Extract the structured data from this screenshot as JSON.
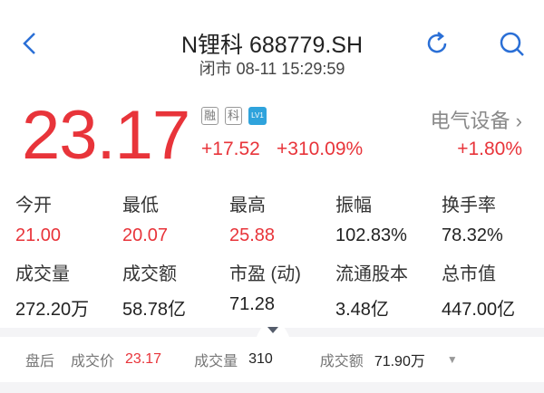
{
  "header": {
    "title": "N锂科 688779.SH",
    "status": "闭市",
    "datetime": "08-11 15:29:59",
    "back_icon": "chevron-left-icon",
    "refresh_icon": "refresh-icon",
    "search_icon": "search-icon"
  },
  "quote": {
    "price": "23.17",
    "change": "+17.52",
    "change_pct": "+310.09%",
    "badges": [
      "融",
      "科"
    ],
    "level_badge": "LV1",
    "sector": "电气设备",
    "sector_change": "+1.80%",
    "up_color": "#e8343a"
  },
  "stats": [
    {
      "label": "今开",
      "value": "21.00",
      "red": true
    },
    {
      "label": "最低",
      "value": "20.07",
      "red": true
    },
    {
      "label": "最高",
      "value": "25.88",
      "red": true
    },
    {
      "label": "振幅",
      "value": "102.83%"
    },
    {
      "label": "换手率",
      "value": "78.32%"
    },
    {
      "label": "成交量",
      "value": "272.20万"
    },
    {
      "label": "成交额",
      "value": "58.78亿"
    },
    {
      "label": "市盈 (动)",
      "value": "71.28"
    },
    {
      "label": "流通股本",
      "value": "3.48亿"
    },
    {
      "label": "总市值",
      "value": "447.00亿"
    }
  ],
  "after_hours": {
    "label": "盘后",
    "price_label": "成交价",
    "price": "23.17",
    "volume_label": "成交量",
    "volume": "310",
    "amount_label": "成交额",
    "amount": "71.90万"
  }
}
